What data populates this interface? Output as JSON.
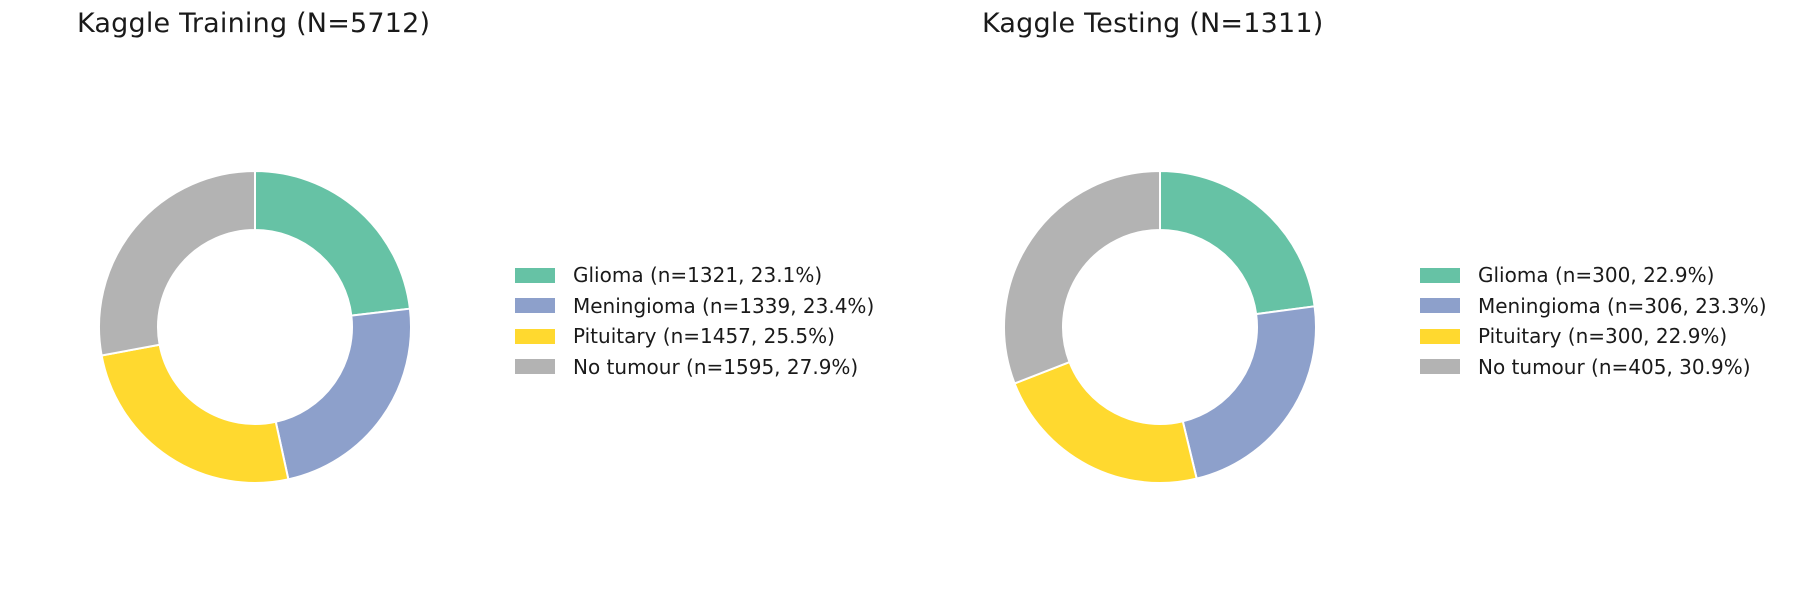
{
  "chart_data": [
    {
      "type": "pie",
      "donut": true,
      "title": "Kaggle Training (N=5712)",
      "categories": [
        "Glioma",
        "Meningioma",
        "Pituitary",
        "No tumour"
      ],
      "values": [
        1321,
        1339,
        1457,
        1595
      ],
      "legend_labels": [
        "Glioma  (n=1321, 23.1%)",
        "Meningioma  (n=1339, 23.4%)",
        "Pituitary  (n=1457, 25.5%)",
        "No tumour  (n=1595, 27.9%)"
      ],
      "colors": [
        "#66c2a5",
        "#8da0cb",
        "#ffd92f",
        "#b3b3b3"
      ],
      "legend_position": "right"
    },
    {
      "type": "pie",
      "donut": true,
      "title": "Kaggle Testing (N=1311)",
      "categories": [
        "Glioma",
        "Meningioma",
        "Pituitary",
        "No tumour"
      ],
      "values": [
        300,
        306,
        300,
        405
      ],
      "legend_labels": [
        "Glioma  (n=300, 22.9%)",
        "Meningioma  (n=306, 23.3%)",
        "Pituitary  (n=300, 22.9%)",
        "No tumour  (n=405, 30.9%)"
      ],
      "colors": [
        "#66c2a5",
        "#8da0cb",
        "#ffd92f",
        "#b3b3b3"
      ],
      "legend_position": "right"
    }
  ]
}
